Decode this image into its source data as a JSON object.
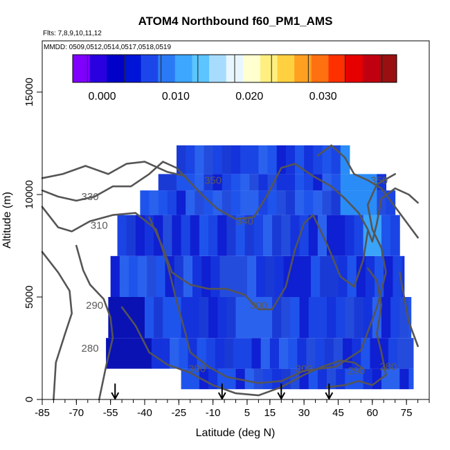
{
  "chart_data": {
    "type": "heatmap",
    "title": "ATOM4 Northbound f60_PM1_AMS",
    "flights_note": "Flts: 7,8,9,10,11,12",
    "dates_note": "MMDD: 0509,0512,0514,0517,0518,0519",
    "xlabel": "Latitude (deg N)",
    "ylabel": "Altitude (m)",
    "xlim": [
      -85,
      85
    ],
    "ylim": [
      0,
      17500
    ],
    "x_ticks": [
      -85,
      -70,
      -55,
      -40,
      -25,
      -10,
      5,
      15,
      30,
      45,
      60,
      75
    ],
    "y_ticks": [
      0,
      5000,
      10000,
      15000
    ],
    "colorbar": {
      "range": [
        -0.004,
        0.04
      ],
      "ticks": [
        0.0,
        0.01,
        0.02,
        0.03
      ],
      "tick_labels": [
        "0.000",
        "0.010",
        "0.020",
        "0.030"
      ],
      "colors": [
        "#7f00ff",
        "#2a00e0",
        "#0000c8",
        "#0014d8",
        "#1c46ea",
        "#2a7af5",
        "#3da6ff",
        "#5cc4ff",
        "#a8dcff",
        "#e8f6ff",
        "#ffffd0",
        "#ffef80",
        "#ffd040",
        "#ffa020",
        "#ff7010",
        "#ff3000",
        "#e60000",
        "#c00010",
        "#9a1010"
      ]
    },
    "contour_labels": [
      {
        "value": "350",
        "lat": -10,
        "alt": 10700
      },
      {
        "value": "350",
        "lat": 63,
        "alt": 10700
      },
      {
        "value": "340",
        "lat": 4,
        "alt": 8700
      },
      {
        "value": "330",
        "lat": -64,
        "alt": 9900
      },
      {
        "value": "310",
        "lat": -60,
        "alt": 8500
      },
      {
        "value": "300",
        "lat": -17,
        "alt": 1500
      },
      {
        "value": "300",
        "lat": 30,
        "alt": 1500
      },
      {
        "value": "300",
        "lat": 10,
        "alt": 4600
      },
      {
        "value": "290",
        "lat": -62,
        "alt": 4600
      },
      {
        "value": "290",
        "lat": 53,
        "alt": 1400
      },
      {
        "value": "280",
        "lat": -64,
        "alt": 2500
      },
      {
        "value": "280",
        "lat": 67,
        "alt": 1600
      }
    ],
    "arrows_lat": [
      -53,
      -6,
      20,
      41
    ]
  }
}
